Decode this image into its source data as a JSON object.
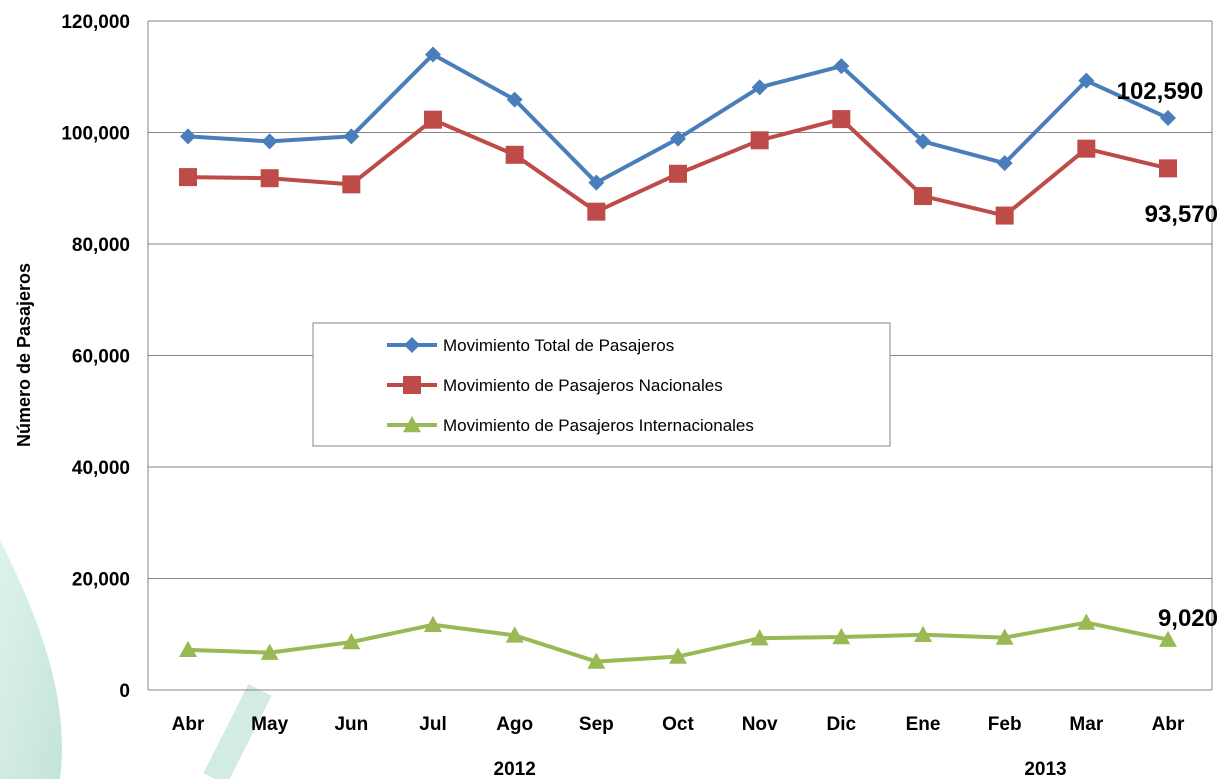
{
  "chart_data": {
    "type": "line",
    "ylabel": "Número de Pasajeros",
    "xlabel": "",
    "ylim": [
      0,
      120000
    ],
    "y_ticks": [
      0,
      20000,
      40000,
      60000,
      80000,
      100000,
      120000
    ],
    "y_tick_labels": [
      "0",
      "20,000",
      "40,000",
      "60,000",
      "80,000",
      "100,000",
      "120,000"
    ],
    "categories": [
      "Abr",
      "May",
      "Jun",
      "Jul",
      "Ago",
      "Sep",
      "Oct",
      "Nov",
      "Dic",
      "Ene",
      "Feb",
      "Mar",
      "Abr"
    ],
    "year_groups": [
      {
        "label": "2012",
        "start": 0,
        "end": 8
      },
      {
        "label": "2013",
        "start": 9,
        "end": 12
      }
    ],
    "grid": "horizontal",
    "legend_position": "center",
    "series": [
      {
        "name": "Movimiento Total de Pasajeros",
        "color": "#4a7ebb",
        "marker": "diamond",
        "values": [
          99300,
          98400,
          99300,
          114000,
          105900,
          91000,
          98900,
          108100,
          111900,
          98400,
          94500,
          109300,
          102590
        ],
        "end_label": "102,590"
      },
      {
        "name": "Movimiento de Pasajeros Nacionales",
        "color": "#be4b48",
        "marker": "square",
        "values": [
          92000,
          91800,
          90700,
          102300,
          96000,
          85800,
          92600,
          98600,
          102400,
          88600,
          85100,
          97100,
          93570
        ],
        "end_label": "93,570"
      },
      {
        "name": "Movimiento de Pasajeros Internacionales",
        "color": "#98b954",
        "marker": "triangle",
        "values": [
          7200,
          6700,
          8600,
          11700,
          9800,
          5100,
          6000,
          9300,
          9500,
          9900,
          9400,
          12100,
          9020
        ],
        "end_label": "9,020"
      }
    ]
  }
}
